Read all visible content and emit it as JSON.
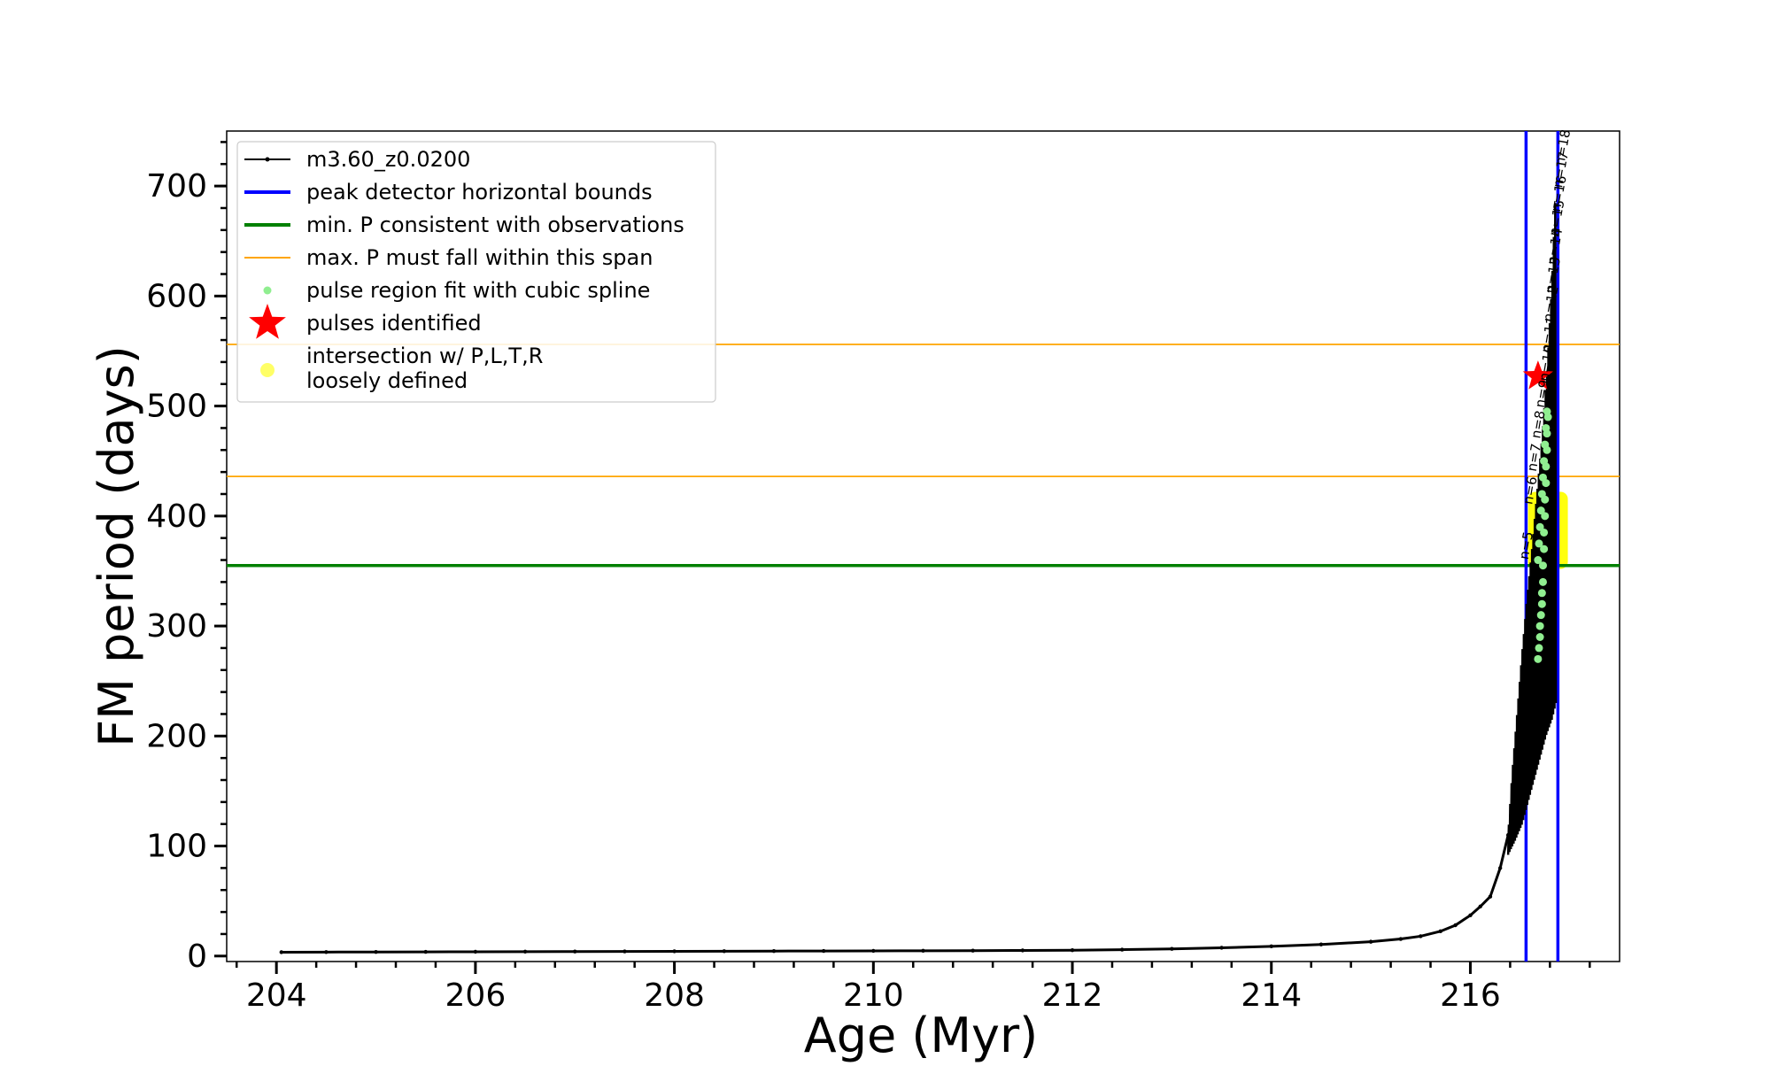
{
  "chart_data": {
    "type": "line",
    "xlabel": "Age (Myr)",
    "ylabel": "FM period (days)",
    "xlim": [
      203.5,
      217.5
    ],
    "ylim": [
      -5,
      750
    ],
    "x_ticks": [
      204,
      206,
      208,
      210,
      212,
      214,
      216
    ],
    "y_ticks": [
      0,
      100,
      200,
      300,
      400,
      500,
      600,
      700
    ],
    "legend_placement": "top-left",
    "grid": false,
    "colors": {
      "track": "#000000",
      "bounds": "#0000ff",
      "min_period": "#008000",
      "max_span": "#ffa500",
      "spline": "#90ee90",
      "pulse": "#ff0000",
      "intersection": "#ffff00"
    },
    "legend": [
      {
        "key": "track",
        "label": "m3.60_z0.0200"
      },
      {
        "key": "bounds",
        "label": "peak detector horizontal bounds"
      },
      {
        "key": "min_period",
        "label": "min. P consistent with observations"
      },
      {
        "key": "max_span",
        "label": "max. P must fall within this span"
      },
      {
        "key": "spline",
        "label": "pulse region fit with cubic spline"
      },
      {
        "key": "pulse",
        "label": "pulses identified"
      },
      {
        "key": "intersection",
        "label": "intersection w/ P,L,T,R\nloosely defined"
      }
    ],
    "vertical_lines": [
      216.56,
      216.88
    ],
    "min_period_line": 355,
    "max_span_lines": [
      436,
      556
    ],
    "track_points": [
      [
        204.05,
        3.5
      ],
      [
        204.5,
        3.6
      ],
      [
        205.0,
        3.7
      ],
      [
        205.5,
        3.8
      ],
      [
        206.0,
        3.9
      ],
      [
        206.5,
        4.0
      ],
      [
        207.0,
        4.1
      ],
      [
        207.5,
        4.2
      ],
      [
        208.0,
        4.3
      ],
      [
        208.5,
        4.4
      ],
      [
        209.0,
        4.5
      ],
      [
        209.5,
        4.6
      ],
      [
        210.0,
        4.7
      ],
      [
        210.5,
        4.8
      ],
      [
        211.0,
        4.9
      ],
      [
        211.5,
        5.1
      ],
      [
        212.0,
        5.3
      ],
      [
        212.5,
        5.8
      ],
      [
        213.0,
        6.5
      ],
      [
        213.5,
        7.5
      ],
      [
        214.0,
        8.8
      ],
      [
        214.5,
        10.5
      ],
      [
        215.0,
        13.0
      ],
      [
        215.3,
        15.5
      ],
      [
        215.5,
        18.0
      ],
      [
        215.7,
        22.5
      ],
      [
        215.85,
        28.0
      ],
      [
        216.0,
        37.0
      ],
      [
        216.1,
        45.0
      ],
      [
        216.2,
        54.0
      ],
      [
        216.3,
        80.0
      ],
      [
        216.38,
        110.0
      ]
    ],
    "pulse_envelope_upper": [
      [
        216.38,
        110
      ],
      [
        216.42,
        165
      ],
      [
        216.47,
        220
      ],
      [
        216.52,
        275
      ],
      [
        216.57,
        325
      ],
      [
        216.62,
        370
      ],
      [
        216.67,
        420
      ],
      [
        216.72,
        470
      ],
      [
        216.77,
        530
      ],
      [
        216.82,
        610
      ],
      [
        216.86,
        700
      ]
    ],
    "pulse_envelope_lower": [
      [
        216.38,
        92
      ],
      [
        216.45,
        105
      ],
      [
        216.52,
        120
      ],
      [
        216.58,
        140
      ],
      [
        216.64,
        160
      ],
      [
        216.7,
        180
      ],
      [
        216.76,
        200
      ],
      [
        216.82,
        215
      ],
      [
        216.86,
        230
      ]
    ],
    "spline_points": [
      [
        216.68,
        270
      ],
      [
        216.69,
        280
      ],
      [
        216.7,
        290
      ],
      [
        216.7,
        300
      ],
      [
        216.71,
        310
      ],
      [
        216.72,
        320
      ],
      [
        216.72,
        330
      ],
      [
        216.73,
        340
      ],
      [
        216.73,
        355
      ],
      [
        216.74,
        370
      ],
      [
        216.74,
        385
      ],
      [
        216.75,
        400
      ],
      [
        216.75,
        415
      ],
      [
        216.76,
        430
      ],
      [
        216.76,
        445
      ],
      [
        216.77,
        460
      ],
      [
        216.77,
        475
      ],
      [
        216.78,
        490
      ],
      [
        216.68,
        360
      ],
      [
        216.69,
        375
      ],
      [
        216.7,
        390
      ],
      [
        216.71,
        405
      ],
      [
        216.72,
        420
      ],
      [
        216.73,
        435
      ],
      [
        216.74,
        450
      ],
      [
        216.75,
        465
      ],
      [
        216.76,
        480
      ],
      [
        216.77,
        495
      ]
    ],
    "pulses": [
      {
        "x": 216.68,
        "y": 527
      }
    ],
    "intersection_regions": [
      {
        "x0": 216.58,
        "x1": 216.98,
        "y0": 352,
        "y1": 422
      },
      {
        "x0": 216.6,
        "x1": 216.7,
        "y0": 355,
        "y1": 395
      },
      {
        "x0": 216.78,
        "x1": 216.88,
        "y0": 440,
        "y1": 560
      }
    ],
    "pulse_annotations": [
      {
        "text": "n=5",
        "x": 216.58,
        "y": 360
      },
      {
        "text": "n=6",
        "x": 216.62,
        "y": 410
      },
      {
        "text": "n=7",
        "x": 216.66,
        "y": 440
      },
      {
        "text": "n=8",
        "x": 216.7,
        "y": 470
      },
      {
        "text": "n=9",
        "x": 216.74,
        "y": 498
      },
      {
        "text": "n=10",
        "x": 216.78,
        "y": 522
      },
      {
        "text": "n=11",
        "x": 216.8,
        "y": 548
      },
      {
        "text": "n=12",
        "x": 216.82,
        "y": 576
      },
      {
        "text": "n=13",
        "x": 216.84,
        "y": 602
      },
      {
        "text": "n=14",
        "x": 216.86,
        "y": 628
      },
      {
        "text": "n=15",
        "x": 216.88,
        "y": 654
      },
      {
        "text": "n=16",
        "x": 216.9,
        "y": 676
      },
      {
        "text": "n=17",
        "x": 216.92,
        "y": 698
      },
      {
        "text": "n=18",
        "x": 216.94,
        "y": 718
      }
    ]
  }
}
